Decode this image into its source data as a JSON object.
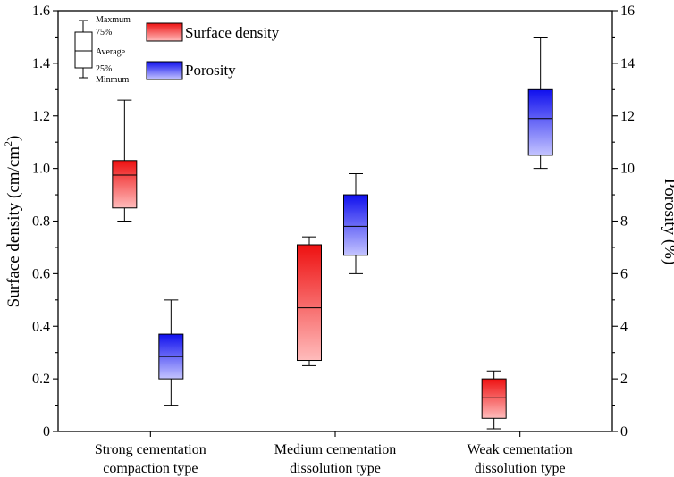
{
  "chart_data": {
    "type": "boxplot",
    "title": "",
    "xlabel": "",
    "categories": [
      [
        "Strong cementation",
        "compaction type"
      ],
      [
        "Medium cementation",
        "dissolution type"
      ],
      [
        "Weak cementation",
        "dissolution type"
      ]
    ],
    "left_axis": {
      "label_main": "Surface density (cm/cm",
      "label_sup": "2",
      "label_end": ")",
      "ylim": [
        0,
        1.6
      ],
      "ticks": [
        "0",
        "0.2",
        "0.4",
        "0.6",
        "0.8",
        "1.0",
        "1.2",
        "1.4",
        "1.6"
      ]
    },
    "right_axis": {
      "label": "Porosity (%)",
      "ylim": [
        0,
        16
      ],
      "ticks": [
        "0",
        "2",
        "4",
        "6",
        "8",
        "10",
        "12",
        "14",
        "16"
      ]
    },
    "series": [
      {
        "name": "Surface density",
        "axis": "left",
        "color_top": "#ee1111",
        "color_bottom": "#ffbcbc",
        "boxes": [
          {
            "min": 0.8,
            "q1": 0.85,
            "mean": 0.975,
            "q3": 1.03,
            "max": 1.26
          },
          {
            "min": 0.25,
            "q1": 0.27,
            "mean": 0.47,
            "q3": 0.71,
            "max": 0.74
          },
          {
            "min": 0.01,
            "q1": 0.05,
            "mean": 0.13,
            "q3": 0.2,
            "max": 0.23
          }
        ]
      },
      {
        "name": "Porosity",
        "axis": "right",
        "color_top": "#1010ee",
        "color_bottom": "#c4c4ff",
        "boxes": [
          {
            "min": 1.0,
            "q1": 2.0,
            "mean": 2.85,
            "q3": 3.7,
            "max": 5.0
          },
          {
            "min": 6.0,
            "q1": 6.7,
            "mean": 7.8,
            "q3": 9.0,
            "max": 9.8
          },
          {
            "min": 10.0,
            "q1": 10.5,
            "mean": 11.9,
            "q3": 13.0,
            "max": 15.0
          }
        ]
      }
    ],
    "legend": {
      "placement": "top-left",
      "key_labels": {
        "max": "Maxmum",
        "q3": "75%",
        "mean": "Average",
        "q1": "25%",
        "min": "Minmum"
      }
    }
  }
}
